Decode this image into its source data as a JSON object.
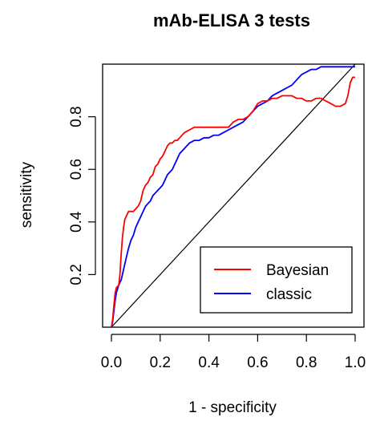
{
  "chart_data": {
    "type": "line",
    "title": "mAb-ELISA 3 tests",
    "xlabel": "1 - specificity",
    "ylabel": "sensitivity",
    "xlim": [
      0,
      1
    ],
    "ylim": [
      0,
      1
    ],
    "x_ticks": [
      {
        "value": 0.0,
        "label": "0.0"
      },
      {
        "value": 0.2,
        "label": "0.2"
      },
      {
        "value": 0.4,
        "label": "0.4"
      },
      {
        "value": 0.6,
        "label": "0.6"
      },
      {
        "value": 0.8,
        "label": "0.8"
      },
      {
        "value": 1.0,
        "label": "1.0"
      }
    ],
    "y_ticks": [
      {
        "value": 0.2,
        "label": "0.2"
      },
      {
        "value": 0.4,
        "label": "0.4"
      },
      {
        "value": 0.6,
        "label": "0.6"
      },
      {
        "value": 0.8,
        "label": "0.8"
      }
    ],
    "grid": false,
    "legend_position": "bottom-right",
    "series": [
      {
        "name": "Bayesian",
        "color": "#ff0000",
        "x": [
          0.0,
          0.005,
          0.01,
          0.015,
          0.02,
          0.03,
          0.035,
          0.04,
          0.045,
          0.05,
          0.055,
          0.06,
          0.065,
          0.07,
          0.08,
          0.09,
          0.1,
          0.11,
          0.12,
          0.13,
          0.14,
          0.15,
          0.16,
          0.17,
          0.18,
          0.19,
          0.2,
          0.21,
          0.22,
          0.23,
          0.24,
          0.25,
          0.26,
          0.27,
          0.28,
          0.3,
          0.32,
          0.34,
          0.36,
          0.38,
          0.4,
          0.42,
          0.44,
          0.46,
          0.48,
          0.5,
          0.52,
          0.54,
          0.56,
          0.58,
          0.6,
          0.62,
          0.64,
          0.66,
          0.68,
          0.7,
          0.72,
          0.74,
          0.76,
          0.78,
          0.8,
          0.82,
          0.84,
          0.86,
          0.88,
          0.9,
          0.92,
          0.94,
          0.96,
          0.97,
          0.98,
          0.99,
          1.0
        ],
        "y": [
          0.0,
          0.03,
          0.08,
          0.13,
          0.15,
          0.16,
          0.2,
          0.28,
          0.34,
          0.38,
          0.41,
          0.42,
          0.43,
          0.44,
          0.44,
          0.44,
          0.45,
          0.46,
          0.48,
          0.52,
          0.54,
          0.55,
          0.57,
          0.58,
          0.61,
          0.62,
          0.64,
          0.65,
          0.67,
          0.69,
          0.7,
          0.7,
          0.71,
          0.71,
          0.72,
          0.74,
          0.75,
          0.76,
          0.76,
          0.76,
          0.76,
          0.76,
          0.76,
          0.76,
          0.76,
          0.78,
          0.79,
          0.79,
          0.8,
          0.82,
          0.85,
          0.86,
          0.86,
          0.87,
          0.87,
          0.88,
          0.88,
          0.88,
          0.87,
          0.87,
          0.86,
          0.86,
          0.87,
          0.87,
          0.86,
          0.85,
          0.84,
          0.84,
          0.85,
          0.88,
          0.93,
          0.95,
          0.95
        ]
      },
      {
        "name": "classic",
        "color": "#0000ff",
        "x": [
          0.0,
          0.005,
          0.01,
          0.015,
          0.02,
          0.03,
          0.04,
          0.05,
          0.06,
          0.07,
          0.08,
          0.09,
          0.1,
          0.11,
          0.12,
          0.13,
          0.14,
          0.15,
          0.16,
          0.17,
          0.18,
          0.19,
          0.2,
          0.21,
          0.22,
          0.23,
          0.24,
          0.25,
          0.26,
          0.27,
          0.28,
          0.29,
          0.3,
          0.32,
          0.34,
          0.36,
          0.38,
          0.4,
          0.42,
          0.44,
          0.46,
          0.48,
          0.5,
          0.52,
          0.54,
          0.56,
          0.58,
          0.6,
          0.62,
          0.64,
          0.66,
          0.68,
          0.7,
          0.72,
          0.74,
          0.76,
          0.78,
          0.8,
          0.82,
          0.84,
          0.86,
          0.88,
          0.9,
          0.92,
          0.94,
          0.96,
          0.98,
          1.0
        ],
        "y": [
          0.0,
          0.02,
          0.06,
          0.1,
          0.13,
          0.16,
          0.18,
          0.22,
          0.26,
          0.3,
          0.33,
          0.35,
          0.38,
          0.4,
          0.42,
          0.44,
          0.46,
          0.47,
          0.48,
          0.5,
          0.51,
          0.52,
          0.53,
          0.54,
          0.56,
          0.58,
          0.59,
          0.6,
          0.62,
          0.64,
          0.66,
          0.67,
          0.68,
          0.7,
          0.71,
          0.71,
          0.72,
          0.72,
          0.73,
          0.73,
          0.74,
          0.75,
          0.76,
          0.77,
          0.78,
          0.8,
          0.82,
          0.84,
          0.85,
          0.86,
          0.88,
          0.89,
          0.9,
          0.91,
          0.92,
          0.94,
          0.96,
          0.97,
          0.98,
          0.98,
          0.99,
          0.99,
          0.99,
          0.99,
          0.99,
          0.99,
          0.99,
          0.99
        ]
      },
      {
        "name": "",
        "color": "#000000",
        "x": [
          0.0,
          1.0
        ],
        "y": [
          0.0,
          1.0
        ]
      }
    ]
  }
}
